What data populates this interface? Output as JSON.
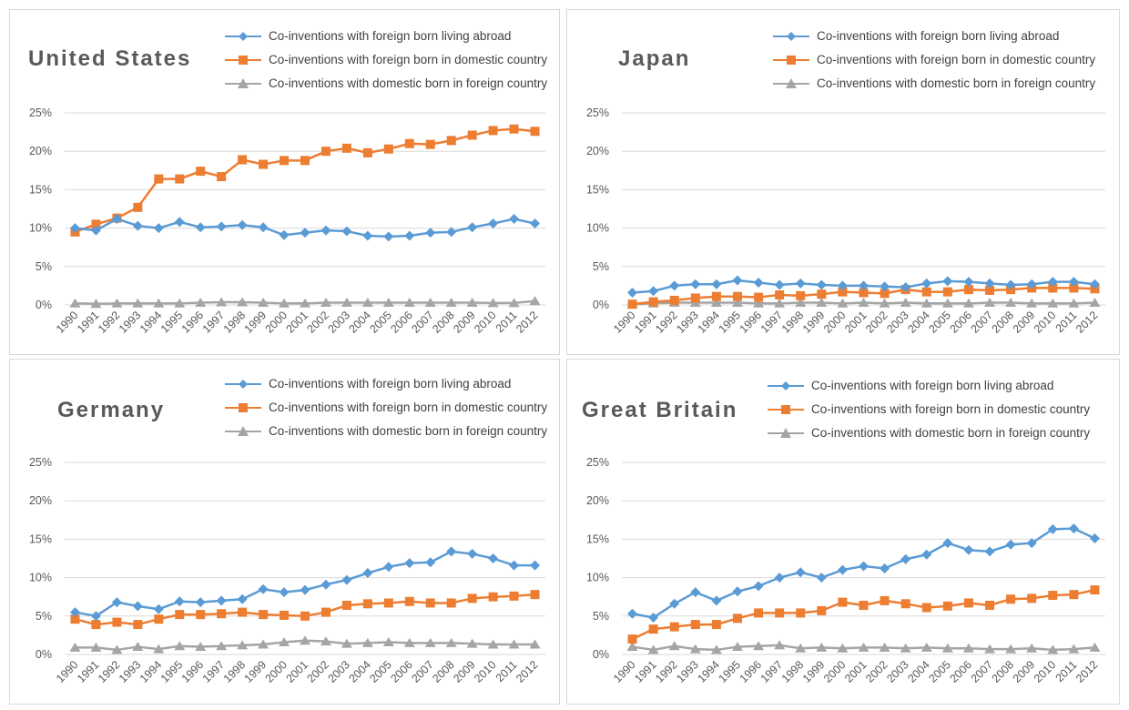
{
  "legend": {
    "series_1": "Co-inventions with foreign born living abroad",
    "series_2": "Co-inventions with foreign born in domestic country",
    "series_3": "Co-inventions with domestic born in foreign country"
  },
  "colors": {
    "series_1": "#5b9bd5",
    "series_2": "#ed7d31",
    "series_3": "#a5a5a5",
    "grid": "#d9d9d9",
    "axis_text": "#595959"
  },
  "chart_data": [
    {
      "type": "line",
      "title": "United States",
      "x": [
        "1990",
        "1991",
        "1992",
        "1993",
        "1994",
        "1995",
        "1996",
        "1997",
        "1998",
        "1999",
        "2000",
        "2001",
        "2002",
        "2003",
        "2004",
        "2005",
        "2006",
        "2007",
        "2008",
        "2009",
        "2010",
        "2011",
        "2012"
      ],
      "y_ticks": [
        "0%",
        "5%",
        "10%",
        "15%",
        "20%",
        "25%"
      ],
      "ylim": [
        0,
        25
      ],
      "grid": true,
      "legend_position": "top-right",
      "series": [
        {
          "name": "Co-inventions with foreign born living abroad",
          "marker": "diamond",
          "values": [
            10.0,
            9.7,
            11.2,
            10.3,
            10.0,
            10.8,
            10.1,
            10.2,
            10.4,
            10.1,
            9.1,
            9.4,
            9.7,
            9.6,
            9.0,
            8.9,
            9.0,
            9.4,
            9.5,
            10.1,
            10.6,
            11.2,
            10.6
          ]
        },
        {
          "name": "Co-inventions with foreign born in domestic country",
          "marker": "square",
          "values": [
            9.5,
            10.5,
            11.3,
            12.7,
            16.4,
            16.4,
            17.4,
            16.7,
            18.9,
            18.3,
            18.8,
            18.8,
            20.0,
            20.4,
            19.8,
            20.3,
            21.0,
            20.9,
            21.4,
            22.1,
            22.7,
            22.9,
            22.6
          ]
        },
        {
          "name": "Co-inventions with domestic born in foreign country",
          "marker": "triangle",
          "values": [
            0.2,
            0.15,
            0.2,
            0.2,
            0.2,
            0.2,
            0.3,
            0.35,
            0.35,
            0.3,
            0.2,
            0.2,
            0.3,
            0.3,
            0.3,
            0.3,
            0.3,
            0.3,
            0.3,
            0.3,
            0.25,
            0.25,
            0.5
          ]
        }
      ]
    },
    {
      "type": "line",
      "title": "Japan",
      "x": [
        "1990",
        "1991",
        "1992",
        "1993",
        "1994",
        "1995",
        "1996",
        "1997",
        "1998",
        "1999",
        "2000",
        "2001",
        "2002",
        "2003",
        "2004",
        "2005",
        "2006",
        "2007",
        "2008",
        "2009",
        "2010",
        "2011",
        "2012"
      ],
      "y_ticks": [
        "0%",
        "5%",
        "10%",
        "15%",
        "20%",
        "25%"
      ],
      "ylim": [
        0,
        25
      ],
      "grid": true,
      "legend_position": "top-right",
      "series": [
        {
          "name": "Co-inventions with foreign born living abroad",
          "marker": "diamond",
          "values": [
            1.6,
            1.8,
            2.5,
            2.7,
            2.7,
            3.2,
            2.9,
            2.6,
            2.8,
            2.6,
            2.5,
            2.5,
            2.4,
            2.3,
            2.8,
            3.1,
            3.0,
            2.8,
            2.6,
            2.7,
            3.0,
            3.0,
            2.7
          ]
        },
        {
          "name": "Co-inventions with foreign born in domestic country",
          "marker": "square",
          "values": [
            0.1,
            0.4,
            0.6,
            0.9,
            1.1,
            1.1,
            1.0,
            1.3,
            1.2,
            1.4,
            1.7,
            1.6,
            1.5,
            2.0,
            1.7,
            1.7,
            2.0,
            1.9,
            2.0,
            2.2,
            2.2,
            2.2,
            2.1
          ]
        },
        {
          "name": "Co-inventions with domestic born in foreign country",
          "marker": "triangle",
          "values": [
            0.1,
            0.2,
            0.3,
            0.3,
            0.3,
            0.3,
            0.2,
            0.2,
            0.3,
            0.3,
            0.2,
            0.3,
            0.2,
            0.3,
            0.2,
            0.2,
            0.2,
            0.3,
            0.3,
            0.2,
            0.2,
            0.2,
            0.3
          ]
        }
      ]
    },
    {
      "type": "line",
      "title": "Germany",
      "x": [
        "1990",
        "1991",
        "1992",
        "1993",
        "1994",
        "1995",
        "1996",
        "1997",
        "1998",
        "1999",
        "2000",
        "2001",
        "2002",
        "2003",
        "2004",
        "2005",
        "2006",
        "2007",
        "2008",
        "2009",
        "2010",
        "2011",
        "2012"
      ],
      "y_ticks": [
        "0%",
        "5%",
        "10%",
        "15%",
        "20%",
        "25%"
      ],
      "ylim": [
        0,
        25
      ],
      "grid": true,
      "legend_position": "top-right",
      "series": [
        {
          "name": "Co-inventions with foreign born living abroad",
          "marker": "diamond",
          "values": [
            5.5,
            5.0,
            6.8,
            6.3,
            5.9,
            6.9,
            6.8,
            7.0,
            7.2,
            8.5,
            8.1,
            8.4,
            9.1,
            9.7,
            10.6,
            11.4,
            11.9,
            12.0,
            13.4,
            13.1,
            12.5,
            11.6,
            11.6
          ]
        },
        {
          "name": "Co-inventions with foreign born in domestic country",
          "marker": "square",
          "values": [
            4.6,
            3.9,
            4.2,
            3.9,
            4.6,
            5.2,
            5.2,
            5.3,
            5.5,
            5.2,
            5.1,
            5.0,
            5.5,
            6.4,
            6.6,
            6.7,
            6.9,
            6.7,
            6.7,
            7.3,
            7.5,
            7.6,
            7.8
          ]
        },
        {
          "name": "Co-inventions with domestic born in foreign country",
          "marker": "triangle",
          "values": [
            0.9,
            0.9,
            0.6,
            1.0,
            0.7,
            1.1,
            1.0,
            1.1,
            1.2,
            1.3,
            1.6,
            1.8,
            1.7,
            1.4,
            1.5,
            1.6,
            1.5,
            1.5,
            1.5,
            1.4,
            1.3,
            1.3,
            1.3
          ]
        }
      ]
    },
    {
      "type": "line",
      "title": "Great Britain",
      "x": [
        "1990",
        "1991",
        "1992",
        "1993",
        "1994",
        "1995",
        "1996",
        "1997",
        "1998",
        "1999",
        "2000",
        "2001",
        "2002",
        "2003",
        "2004",
        "2005",
        "2006",
        "2007",
        "2008",
        "2009",
        "2010",
        "2011",
        "2012"
      ],
      "y_ticks": [
        "0%",
        "5%",
        "10%",
        "15%",
        "20%",
        "25%"
      ],
      "ylim": [
        0,
        25
      ],
      "grid": true,
      "legend_position": "top-right",
      "series": [
        {
          "name": "Co-inventions with foreign born living abroad",
          "marker": "diamond",
          "values": [
            5.3,
            4.8,
            6.6,
            8.1,
            7.0,
            8.2,
            8.9,
            10.0,
            10.7,
            10.0,
            11.0,
            11.5,
            11.2,
            12.4,
            13.0,
            14.5,
            13.6,
            13.4,
            14.3,
            14.5,
            16.3,
            16.4,
            15.1
          ]
        },
        {
          "name": "Co-inventions with foreign born in domestic country",
          "marker": "square",
          "values": [
            2.0,
            3.3,
            3.6,
            3.9,
            3.9,
            4.7,
            5.4,
            5.4,
            5.4,
            5.7,
            6.8,
            6.4,
            7.0,
            6.6,
            6.1,
            6.3,
            6.7,
            6.4,
            7.2,
            7.3,
            7.7,
            7.8,
            8.4
          ]
        },
        {
          "name": "Co-inventions with domestic born in foreign country",
          "marker": "triangle",
          "values": [
            1.0,
            0.6,
            1.1,
            0.7,
            0.6,
            1.0,
            1.1,
            1.2,
            0.8,
            0.9,
            0.8,
            0.9,
            0.9,
            0.8,
            0.9,
            0.8,
            0.8,
            0.7,
            0.7,
            0.8,
            0.6,
            0.7,
            0.9
          ]
        }
      ]
    }
  ]
}
